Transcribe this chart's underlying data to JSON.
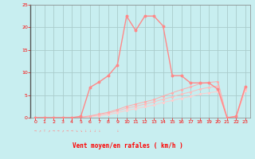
{
  "bg_color": "#c8eef0",
  "grid_color": "#aacccc",
  "line_color_main": "#ff8888",
  "line_color_light1": "#ffaaaa",
  "line_color_light2": "#ffbbbb",
  "line_color_light3": "#ffcccc",
  "xlabel": "Vent moyen/en rafales ( km/h )",
  "xlabel_color": "#ff0000",
  "tick_color": "#ff0000",
  "xlim": [
    -0.5,
    23.5
  ],
  "ylim": [
    0,
    25
  ],
  "yticks": [
    0,
    5,
    10,
    15,
    20,
    25
  ],
  "xticks": [
    0,
    1,
    2,
    3,
    4,
    5,
    6,
    7,
    8,
    9,
    10,
    11,
    12,
    13,
    14,
    15,
    16,
    17,
    18,
    19,
    20,
    21,
    22,
    23
  ],
  "main_x": [
    0,
    1,
    2,
    3,
    4,
    5,
    6,
    7,
    8,
    9,
    10,
    11,
    12,
    13,
    14,
    15,
    16,
    17,
    18,
    19,
    20,
    21,
    22,
    23
  ],
  "main_y": [
    0,
    0,
    0,
    0,
    0,
    0.3,
    6.7,
    7.9,
    9.3,
    11.7,
    22.5,
    19.3,
    22.5,
    22.5,
    20.3,
    9.3,
    9.3,
    7.7,
    7.7,
    7.7,
    6.3,
    0.0,
    0.3,
    6.9
  ],
  "line2_x": [
    0,
    1,
    2,
    3,
    4,
    5,
    6,
    7,
    8,
    9,
    10,
    11,
    12,
    13,
    14,
    15,
    16,
    17,
    18,
    19,
    20,
    21,
    22,
    23
  ],
  "line2_y": [
    0,
    0,
    0,
    0,
    0,
    0.1,
    0.4,
    0.8,
    1.2,
    1.8,
    2.5,
    3.0,
    3.5,
    4.0,
    4.8,
    5.5,
    6.2,
    6.8,
    7.5,
    7.8,
    8.0,
    0.0,
    0.2,
    6.8
  ],
  "line3_x": [
    0,
    1,
    2,
    3,
    4,
    5,
    6,
    7,
    8,
    9,
    10,
    11,
    12,
    13,
    14,
    15,
    16,
    17,
    18,
    19,
    20,
    21,
    22,
    23
  ],
  "line3_y": [
    0,
    0,
    0,
    0,
    0,
    0.1,
    0.3,
    0.6,
    1.0,
    1.5,
    2.1,
    2.5,
    3.0,
    3.5,
    4.1,
    4.6,
    5.2,
    5.7,
    6.3,
    6.7,
    7.0,
    0.0,
    0.15,
    6.4
  ],
  "line4_x": [
    0,
    1,
    2,
    3,
    4,
    5,
    6,
    7,
    8,
    9,
    10,
    11,
    12,
    13,
    14,
    15,
    16,
    17,
    18,
    19,
    20,
    21,
    22,
    23
  ],
  "line4_y": [
    0,
    0,
    0,
    0,
    0,
    0.05,
    0.2,
    0.4,
    0.7,
    1.1,
    1.6,
    2.0,
    2.4,
    2.8,
    3.4,
    3.8,
    4.3,
    4.7,
    5.2,
    5.5,
    5.8,
    0.0,
    0.1,
    6.0
  ],
  "arrow_row": "→ ↗ ↑ ↗ → → ↗ → → ↘ ↘ ↓ ↓ ↓ ↓       ↓"
}
